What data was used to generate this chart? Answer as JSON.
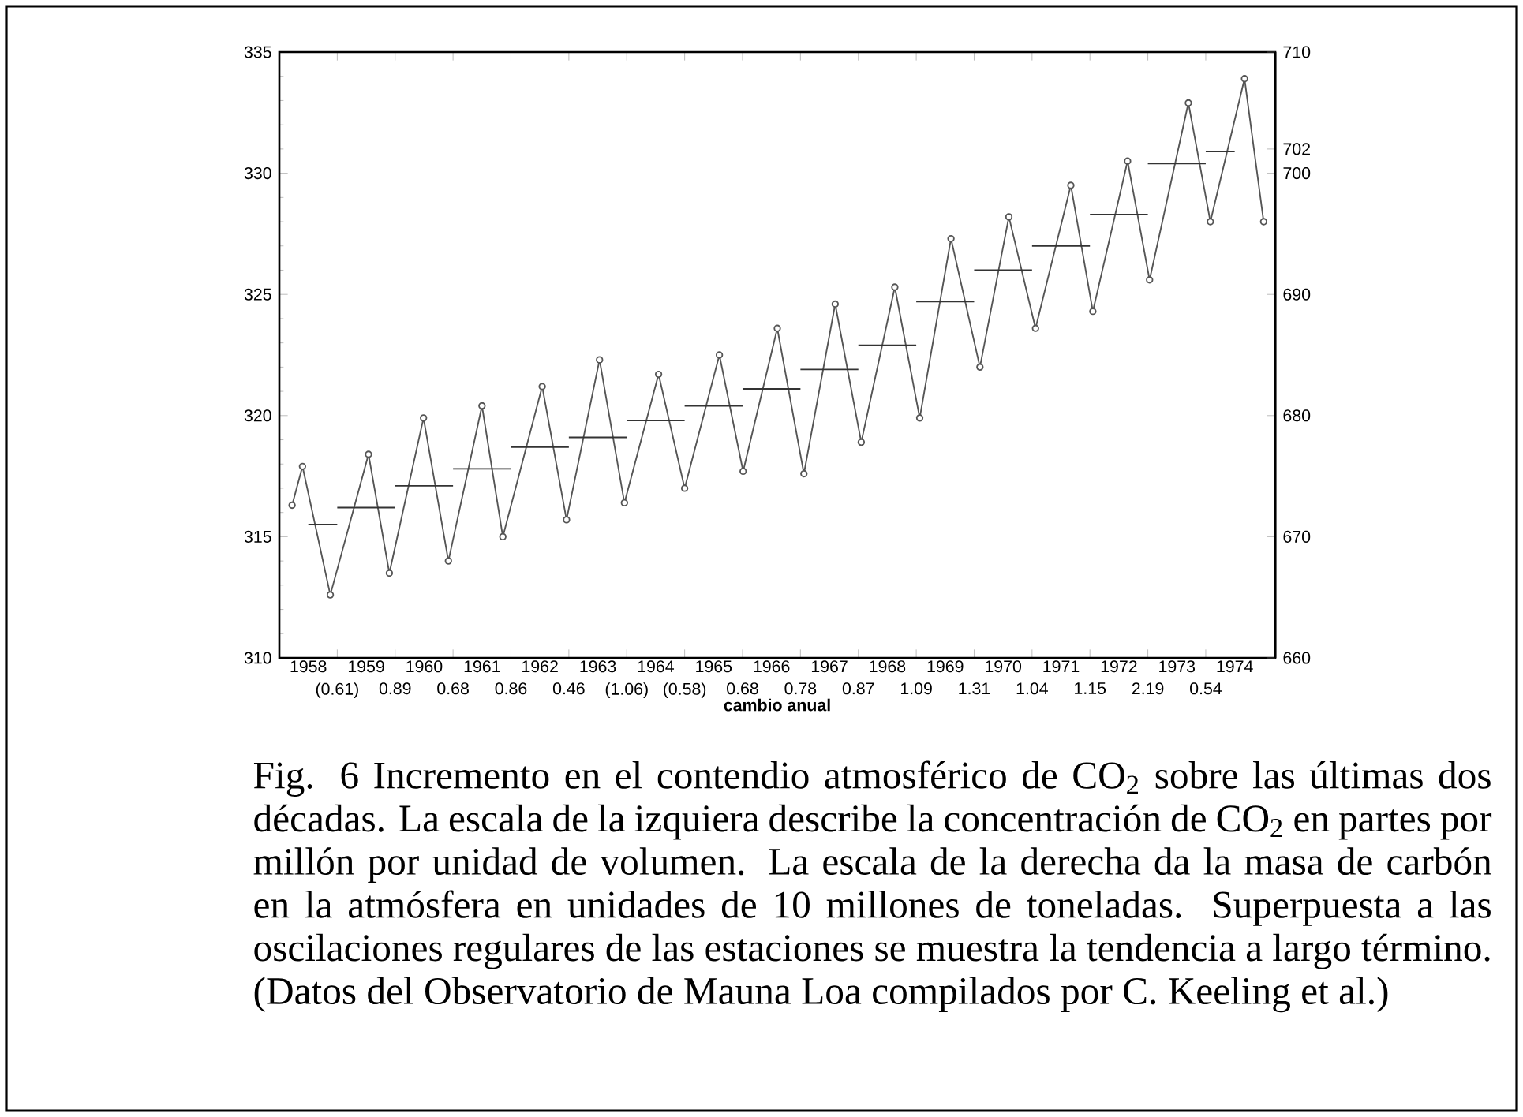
{
  "chart_data": {
    "type": "line",
    "xlabel": "cambio anual",
    "annotations": [
      "(0.61)",
      "0.89",
      "0.68",
      "0.86",
      "0.46",
      "(1.06)",
      "(0.58)",
      "0.68",
      "0.78",
      "0.87",
      "1.09",
      "1.31",
      "1.04",
      "1.15",
      "2.19",
      "0.54",
      "Fig. 6  Incremento en el contendio atmosférico de CO$_{2}$ sobre las últimas dos décadas. La escala de la izquiera describe la concentración de CO$_{2}$ en partes por millón por unidad de volumen. La escala de la derecha da la masa de carbón en la atmósfera en unidades de 10 millones de toneladas. Superpuesta a las oscilaciones regulares de las estaciones se muestra la tendencia a largo término. (Datos del Observatorio de Mauna Loa compilados por C. Keeling et al.)"
    ],
    "xlim": [
      1958,
      1975.2
    ],
    "xticks": [
      {
        "value": 1958.5,
        "label": "1958"
      },
      {
        "value": 1959.5,
        "label": "1959"
      },
      {
        "value": 1960.5,
        "label": "1960"
      },
      {
        "value": 1961.5,
        "label": "1961"
      },
      {
        "value": 1962.5,
        "label": "1962"
      },
      {
        "value": 1963.5,
        "label": "1963"
      },
      {
        "value": 1964.5,
        "label": "1964"
      },
      {
        "value": 1965.5,
        "label": "1965"
      },
      {
        "value": 1966.5,
        "label": "1966"
      },
      {
        "value": 1967.5,
        "label": "1967"
      },
      {
        "value": 1968.5,
        "label": "1968"
      },
      {
        "value": 1969.5,
        "label": "1969"
      },
      {
        "value": 1970.5,
        "label": "1970"
      },
      {
        "value": 1971.5,
        "label": "1971"
      },
      {
        "value": 1972.5,
        "label": "1972"
      },
      {
        "value": 1973.5,
        "label": "1973"
      },
      {
        "value": 1974.5,
        "label": "1974"
      },
      {
        "value": 1959,
        "label": null
      },
      {
        "value": 1960,
        "label": null
      },
      {
        "value": 1961,
        "label": null
      },
      {
        "value": 1962,
        "label": null
      },
      {
        "value": 1963,
        "label": null
      },
      {
        "value": 1964,
        "label": null
      },
      {
        "value": 1965,
        "label": null
      },
      {
        "value": 1966,
        "label": null
      },
      {
        "value": 1967,
        "label": null
      },
      {
        "value": 1968,
        "label": null
      },
      {
        "value": 1969,
        "label": null
      },
      {
        "value": 1970,
        "label": null
      },
      {
        "value": 1971,
        "label": null
      },
      {
        "value": 1972,
        "label": null
      },
      {
        "value": 1973,
        "label": null
      },
      {
        "value": 1974,
        "label": null
      }
    ],
    "ylim": [
      310,
      335
    ],
    "yticks": [
      310,
      315,
      320,
      325,
      330,
      335
    ],
    "y2lim": [
      660,
      710
    ],
    "y2ticks": [
      660,
      670,
      680,
      690,
      700,
      702,
      710
    ],
    "series": [
      {
        "color": "#555555",
        "marker": "circle",
        "x": [
          1958.22,
          1958.4,
          1958.88,
          1959.54,
          1959.9,
          1960.49,
          1960.92,
          1961.5,
          1961.86,
          1962.54,
          1962.96,
          1963.53,
          1963.96,
          1964.55,
          1965.0,
          1965.6,
          1966.01,
          1966.6,
          1967.06,
          1967.6,
          1968.05,
          1968.63,
          1969.06,
          1969.6,
          1970.1,
          1970.6,
          1971.06,
          1971.67,
          1972.05,
          1972.65,
          1973.03,
          1973.7,
          1974.08,
          1974.67,
          1975.0
        ],
        "values": [
          316.3,
          317.9,
          312.6,
          318.4,
          313.5,
          319.9,
          314.0,
          320.4,
          315.0,
          321.2,
          315.7,
          322.3,
          316.4,
          321.7,
          317.0,
          322.5,
          317.7,
          323.6,
          317.6,
          324.6,
          318.9,
          325.3,
          319.9,
          327.3,
          322.0,
          328.2,
          323.6,
          329.5,
          324.3,
          330.5,
          325.6,
          332.9,
          328.0,
          333.9,
          328.0
        ]
      },
      {
        "type": "step",
        "color": "#333333",
        "marker": "none",
        "x": [
          1958.5,
          1959.5,
          1960.5,
          1961.5,
          1962.5,
          1963.5,
          1964.5,
          1965.5,
          1966.5,
          1967.5,
          1968.5,
          1969.5,
          1970.5,
          1971.5,
          1972.5,
          1973.5,
          1974.5
        ],
        "values": [
          315.5,
          316.2,
          317.1,
          317.8,
          318.7,
          319.1,
          319.8,
          320.4,
          321.1,
          321.9,
          322.9,
          324.7,
          326.0,
          327.0,
          328.3,
          330.4,
          330.9
        ]
      }
    ]
  }
}
